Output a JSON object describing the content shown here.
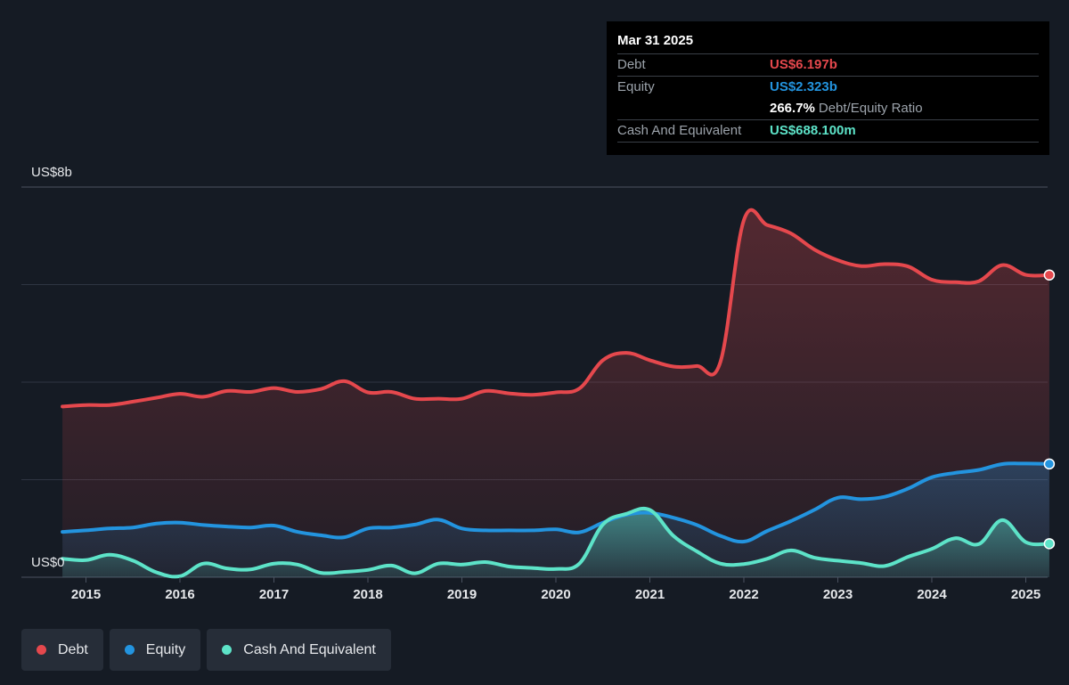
{
  "chart_data": {
    "type": "area",
    "ylabel_top": "US$8b",
    "ylabel_bottom": "US$0",
    "ylim": [
      0,
      8
    ],
    "unit": "US$ billions",
    "x_ticks": [
      "2015",
      "2016",
      "2017",
      "2018",
      "2019",
      "2020",
      "2021",
      "2022",
      "2023",
      "2024",
      "2025"
    ],
    "grid": true,
    "legend_placement": "bottom-left",
    "series": [
      {
        "name": "Debt",
        "color": "#e5484d",
        "points": [
          [
            2014.75,
            3.5
          ],
          [
            2015.0,
            3.53
          ],
          [
            2015.25,
            3.53
          ],
          [
            2015.5,
            3.6
          ],
          [
            2015.75,
            3.68
          ],
          [
            2016.0,
            3.76
          ],
          [
            2016.25,
            3.7
          ],
          [
            2016.5,
            3.82
          ],
          [
            2016.75,
            3.8
          ],
          [
            2017.0,
            3.88
          ],
          [
            2017.25,
            3.8
          ],
          [
            2017.5,
            3.86
          ],
          [
            2017.75,
            4.02
          ],
          [
            2018.0,
            3.79
          ],
          [
            2018.25,
            3.8
          ],
          [
            2018.5,
            3.66
          ],
          [
            2018.75,
            3.66
          ],
          [
            2019.0,
            3.66
          ],
          [
            2019.25,
            3.82
          ],
          [
            2019.5,
            3.77
          ],
          [
            2019.75,
            3.74
          ],
          [
            2020.0,
            3.79
          ],
          [
            2020.25,
            3.87
          ],
          [
            2020.5,
            4.45
          ],
          [
            2020.75,
            4.6
          ],
          [
            2021.0,
            4.45
          ],
          [
            2021.25,
            4.32
          ],
          [
            2021.5,
            4.33
          ],
          [
            2021.75,
            4.41
          ],
          [
            2022.0,
            7.32
          ],
          [
            2022.25,
            7.22
          ],
          [
            2022.5,
            7.05
          ],
          [
            2022.75,
            6.72
          ],
          [
            2023.0,
            6.5
          ],
          [
            2023.25,
            6.38
          ],
          [
            2023.5,
            6.42
          ],
          [
            2023.75,
            6.37
          ],
          [
            2024.0,
            6.1
          ],
          [
            2024.25,
            6.05
          ],
          [
            2024.5,
            6.07
          ],
          [
            2024.75,
            6.4
          ],
          [
            2025.0,
            6.2
          ],
          [
            2025.25,
            6.197
          ]
        ]
      },
      {
        "name": "Equity",
        "color": "#2394df",
        "points": [
          [
            2014.75,
            0.93
          ],
          [
            2015.0,
            0.96
          ],
          [
            2015.25,
            1.0
          ],
          [
            2015.5,
            1.02
          ],
          [
            2015.75,
            1.1
          ],
          [
            2016.0,
            1.12
          ],
          [
            2016.25,
            1.07
          ],
          [
            2016.5,
            1.04
          ],
          [
            2016.75,
            1.02
          ],
          [
            2017.0,
            1.06
          ],
          [
            2017.25,
            0.93
          ],
          [
            2017.5,
            0.86
          ],
          [
            2017.75,
            0.82
          ],
          [
            2018.0,
            1.0
          ],
          [
            2018.25,
            1.02
          ],
          [
            2018.5,
            1.08
          ],
          [
            2018.75,
            1.18
          ],
          [
            2019.0,
            1.0
          ],
          [
            2019.25,
            0.96
          ],
          [
            2019.5,
            0.96
          ],
          [
            2019.75,
            0.96
          ],
          [
            2020.0,
            0.98
          ],
          [
            2020.25,
            0.92
          ],
          [
            2020.5,
            1.12
          ],
          [
            2020.75,
            1.28
          ],
          [
            2021.0,
            1.32
          ],
          [
            2021.25,
            1.22
          ],
          [
            2021.5,
            1.07
          ],
          [
            2021.75,
            0.85
          ],
          [
            2022.0,
            0.73
          ],
          [
            2022.25,
            0.95
          ],
          [
            2022.5,
            1.15
          ],
          [
            2022.75,
            1.38
          ],
          [
            2023.0,
            1.63
          ],
          [
            2023.25,
            1.6
          ],
          [
            2023.5,
            1.65
          ],
          [
            2023.75,
            1.82
          ],
          [
            2024.0,
            2.05
          ],
          [
            2024.25,
            2.14
          ],
          [
            2024.5,
            2.2
          ],
          [
            2024.75,
            2.32
          ],
          [
            2025.0,
            2.33
          ],
          [
            2025.25,
            2.323
          ]
        ]
      },
      {
        "name": "Cash And Equivalent",
        "color": "#5de3c8",
        "points": [
          [
            2014.75,
            0.38
          ],
          [
            2015.0,
            0.35
          ],
          [
            2015.25,
            0.46
          ],
          [
            2015.5,
            0.34
          ],
          [
            2015.75,
            0.1
          ],
          [
            2016.0,
            0.02
          ],
          [
            2016.25,
            0.28
          ],
          [
            2016.5,
            0.18
          ],
          [
            2016.75,
            0.16
          ],
          [
            2017.0,
            0.28
          ],
          [
            2017.25,
            0.26
          ],
          [
            2017.5,
            0.09
          ],
          [
            2017.75,
            0.11
          ],
          [
            2018.0,
            0.15
          ],
          [
            2018.25,
            0.24
          ],
          [
            2018.5,
            0.08
          ],
          [
            2018.75,
            0.28
          ],
          [
            2019.0,
            0.26
          ],
          [
            2019.25,
            0.31
          ],
          [
            2019.5,
            0.22
          ],
          [
            2019.75,
            0.19
          ],
          [
            2020.0,
            0.17
          ],
          [
            2020.25,
            0.28
          ],
          [
            2020.5,
            1.08
          ],
          [
            2020.75,
            1.3
          ],
          [
            2021.0,
            1.38
          ],
          [
            2021.25,
            0.85
          ],
          [
            2021.5,
            0.53
          ],
          [
            2021.75,
            0.28
          ],
          [
            2022.0,
            0.27
          ],
          [
            2022.25,
            0.38
          ],
          [
            2022.5,
            0.55
          ],
          [
            2022.75,
            0.4
          ],
          [
            2023.0,
            0.34
          ],
          [
            2023.25,
            0.29
          ],
          [
            2023.5,
            0.23
          ],
          [
            2023.75,
            0.42
          ],
          [
            2024.0,
            0.58
          ],
          [
            2024.25,
            0.8
          ],
          [
            2024.5,
            0.68
          ],
          [
            2024.75,
            1.17
          ],
          [
            2025.0,
            0.72
          ],
          [
            2025.25,
            0.688
          ]
        ]
      }
    ]
  },
  "tooltip": {
    "date": "Mar 31 2025",
    "rows": [
      {
        "label": "Debt",
        "value": "US$6.197b",
        "color": "#e5484d"
      },
      {
        "label": "Equity",
        "value": "US$2.323b",
        "color": "#2394df"
      },
      {
        "label": "",
        "value": "266.7%",
        "suffix": "Debt/Equity Ratio",
        "color": "#ffffff"
      },
      {
        "label": "Cash And Equivalent",
        "value": "US$688.100m",
        "color": "#5de3c8"
      }
    ]
  },
  "legend": {
    "items": [
      {
        "label": "Debt",
        "color": "#e5484d"
      },
      {
        "label": "Equity",
        "color": "#2394df"
      },
      {
        "label": "Cash And Equivalent",
        "color": "#5de3c8"
      }
    ]
  }
}
